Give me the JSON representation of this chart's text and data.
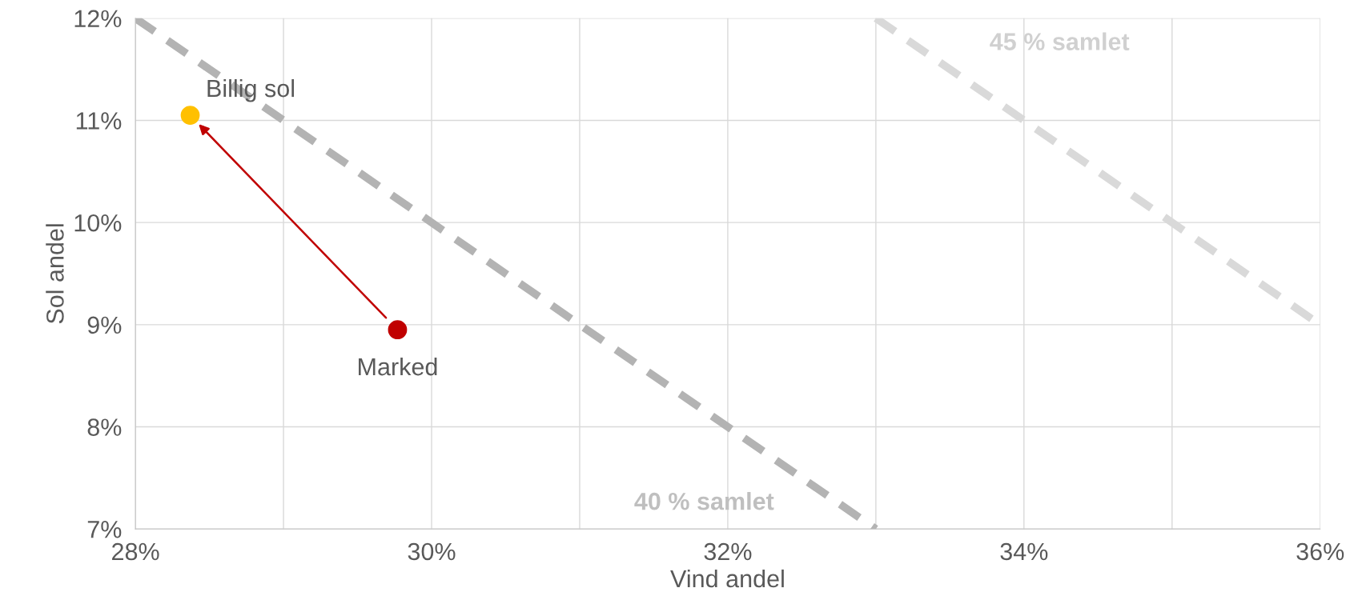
{
  "chart_data": {
    "type": "scatter",
    "xlabel": "Vind andel",
    "ylabel": "Sol andel",
    "xlim": [
      28,
      36
    ],
    "ylim": [
      7,
      12
    ],
    "xticks": [
      {
        "value": 28,
        "label": "28%"
      },
      {
        "value": 29,
        "label": null
      },
      {
        "value": 30,
        "label": "30%"
      },
      {
        "value": 31,
        "label": null
      },
      {
        "value": 32,
        "label": "32%"
      },
      {
        "value": 33,
        "label": null
      },
      {
        "value": 34,
        "label": "34%"
      },
      {
        "value": 35,
        "label": null
      },
      {
        "value": 36,
        "label": "36%"
      }
    ],
    "yticks": [
      {
        "value": 7,
        "label": "7%"
      },
      {
        "value": 8,
        "label": "8%"
      },
      {
        "value": 9,
        "label": "9%"
      },
      {
        "value": 10,
        "label": "10%"
      },
      {
        "value": 11,
        "label": "11%"
      },
      {
        "value": 12,
        "label": "12%"
      }
    ],
    "grid": true,
    "series": [
      {
        "type": "line",
        "line_style": "dashed",
        "marker": "none",
        "color": "#b3b3b3",
        "x": [
          28,
          33
        ],
        "values": [
          12,
          7
        ]
      },
      {
        "type": "line",
        "line_style": "dashed",
        "marker": "none",
        "color": "#d9d9d9",
        "x": [
          33,
          36
        ],
        "values": [
          12,
          9
        ]
      },
      {
        "name": "Billig sol",
        "marker": "circle",
        "color": "#ffc000",
        "x": [
          28.37
        ],
        "values": [
          11.05
        ]
      },
      {
        "name": "Marked",
        "marker": "circle",
        "color": "#c00000",
        "x": [
          29.77
        ],
        "values": [
          8.95
        ]
      }
    ],
    "annotations": [
      "40 % samlet",
      "45 % samlet"
    ]
  }
}
